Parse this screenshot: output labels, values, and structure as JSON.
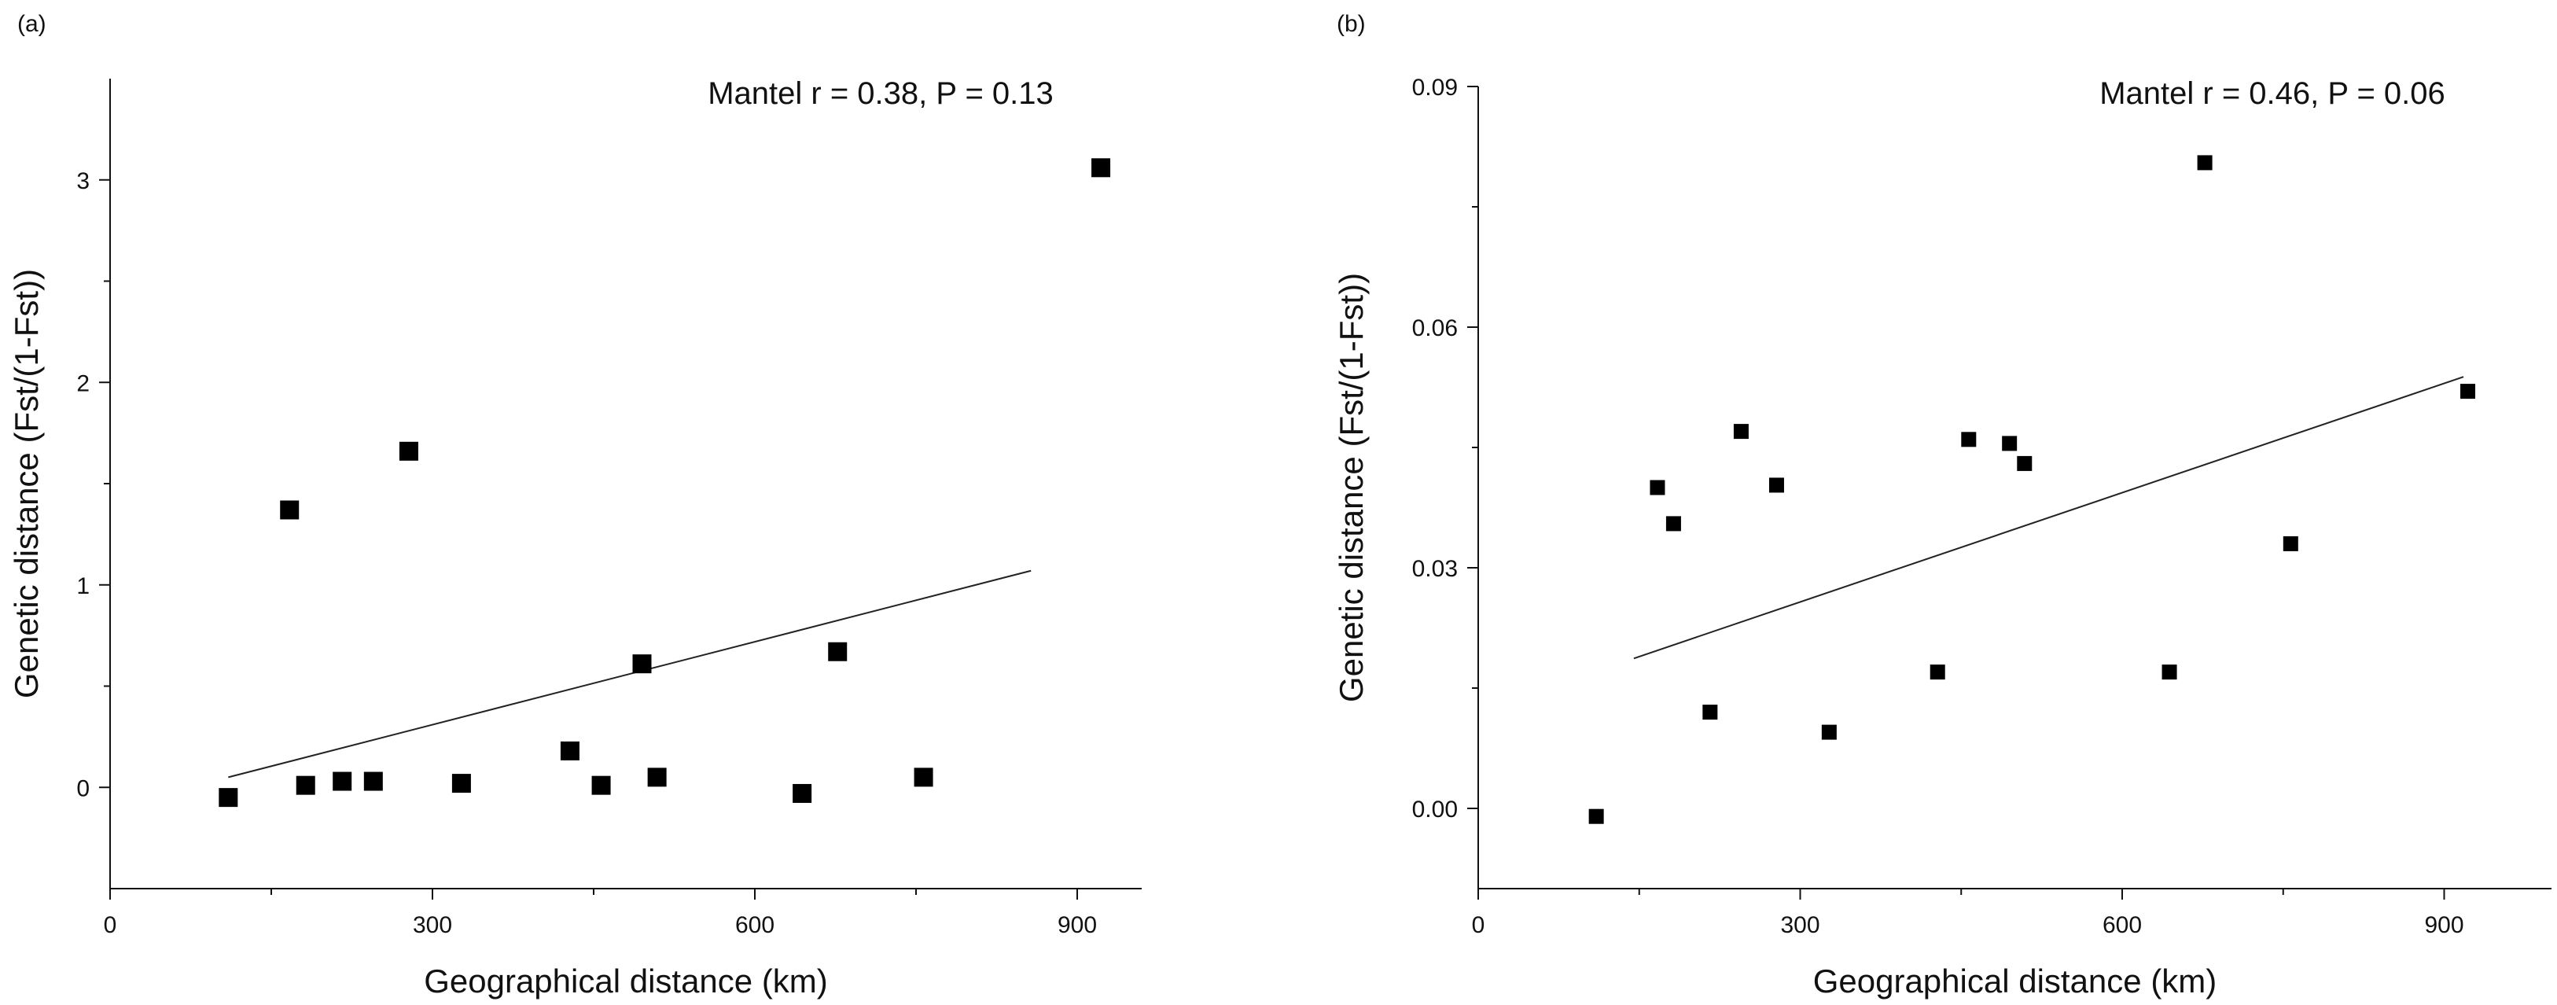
{
  "chart_data": [
    {
      "type": "scatter",
      "panel_label": "(a)",
      "annotation": "Mantel r = 0.38, P = 0.13",
      "xlabel": "Geographical distance (km)",
      "ylabel": "Genetic distance (Fst/(1-Fst))",
      "xlim": [
        0,
        960
      ],
      "ylim": [
        -0.5,
        3.5
      ],
      "x_ticks": [
        0,
        300,
        600,
        900
      ],
      "x_tick_labels": [
        "0",
        "300",
        "600",
        "900"
      ],
      "y_ticks": [
        0,
        1,
        2,
        3
      ],
      "y_tick_labels": [
        "0",
        "1",
        "2",
        "3"
      ],
      "points": [
        {
          "x": 110,
          "y": -0.05
        },
        {
          "x": 167,
          "y": 1.37
        },
        {
          "x": 182,
          "y": 0.01
        },
        {
          "x": 216,
          "y": 0.03
        },
        {
          "x": 245,
          "y": 0.03
        },
        {
          "x": 278,
          "y": 1.66
        },
        {
          "x": 327,
          "y": 0.02
        },
        {
          "x": 428,
          "y": 0.18
        },
        {
          "x": 457,
          "y": 0.01
        },
        {
          "x": 495,
          "y": 0.61
        },
        {
          "x": 509,
          "y": 0.05
        },
        {
          "x": 644,
          "y": -0.03
        },
        {
          "x": 677,
          "y": 0.67
        },
        {
          "x": 757,
          "y": 0.05
        },
        {
          "x": 922,
          "y": 3.06
        }
      ],
      "fit_line": {
        "x": [
          110,
          857
        ],
        "y": [
          0.05,
          1.07
        ]
      }
    },
    {
      "type": "scatter",
      "panel_label": "(b)",
      "annotation": "Mantel r = 0.46, P = 0.06",
      "xlabel": "Geographical distance (km)",
      "ylabel": "Genetic distance (Fst/(1-Fst))",
      "xlim": [
        0,
        1000
      ],
      "ylim": [
        -0.01,
        0.09
      ],
      "x_ticks": [
        0,
        300,
        600,
        900
      ],
      "x_tick_labels": [
        "0",
        "300",
        "600",
        "900"
      ],
      "y_ticks": [
        0.0,
        0.03,
        0.06,
        0.09
      ],
      "y_tick_labels": [
        "0.00",
        "0.03",
        "0.06",
        "0.09"
      ],
      "points": [
        {
          "x": 110,
          "y": -0.001
        },
        {
          "x": 167,
          "y": 0.04
        },
        {
          "x": 182,
          "y": 0.0355
        },
        {
          "x": 216,
          "y": 0.012
        },
        {
          "x": 245,
          "y": 0.047
        },
        {
          "x": 278,
          "y": 0.0403
        },
        {
          "x": 327,
          "y": 0.0095
        },
        {
          "x": 428,
          "y": 0.017
        },
        {
          "x": 457,
          "y": 0.046
        },
        {
          "x": 495,
          "y": 0.0455
        },
        {
          "x": 509,
          "y": 0.043
        },
        {
          "x": 644,
          "y": 0.017
        },
        {
          "x": 677,
          "y": 0.0805
        },
        {
          "x": 757,
          "y": 0.033
        },
        {
          "x": 922,
          "y": 0.052
        }
      ],
      "fit_line": {
        "x": [
          145,
          918
        ],
        "y": [
          0.0187,
          0.0538
        ]
      }
    }
  ]
}
